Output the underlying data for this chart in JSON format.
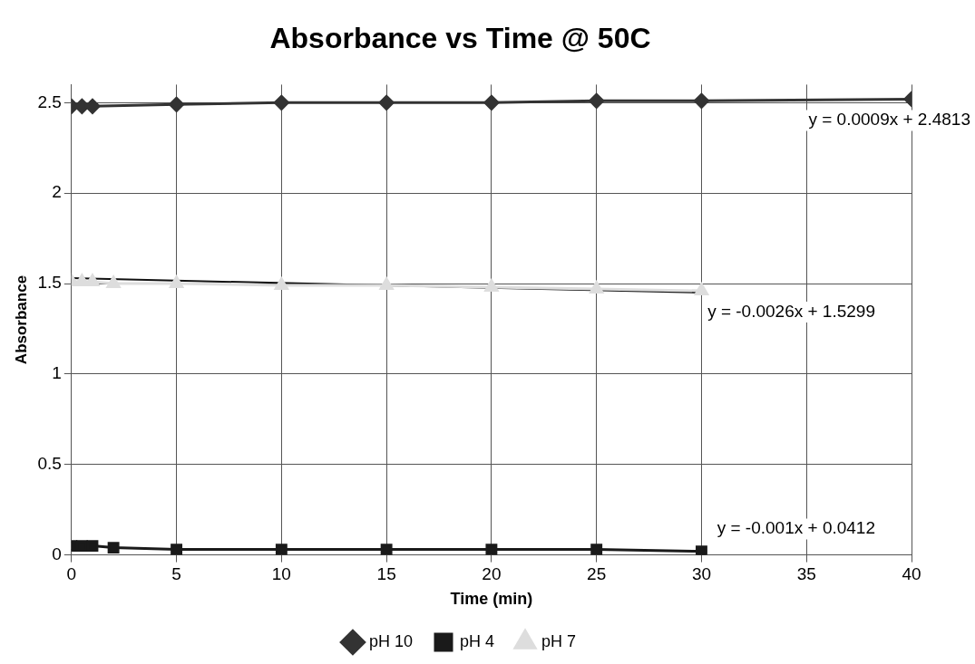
{
  "chart_data": {
    "type": "line",
    "title": "Absorbance vs Time @ 50C",
    "xlabel": "Time (min)",
    "ylabel": "Absorbance",
    "series": [
      {
        "name": "pH 10",
        "color": "#333333",
        "marker": "diamond",
        "x": [
          0,
          0.5,
          1,
          5,
          10,
          15,
          20,
          25,
          30,
          40
        ],
        "values": [
          2.48,
          2.48,
          2.48,
          2.49,
          2.5,
          2.5,
          2.5,
          2.51,
          2.51,
          2.52
        ]
      },
      {
        "name": "pH 4",
        "color": "#1a1a1a",
        "marker": "square",
        "x": [
          0,
          0.5,
          1,
          2,
          5,
          10,
          15,
          20,
          25,
          30
        ],
        "values": [
          0.05,
          0.05,
          0.05,
          0.04,
          0.03,
          0.03,
          0.03,
          0.03,
          0.03,
          0.02
        ]
      },
      {
        "name": "pH 7",
        "color": "#dddddd",
        "marker": "triangle",
        "x": [
          0,
          0.5,
          1,
          2,
          5,
          10,
          15,
          20,
          25,
          30
        ],
        "values": [
          1.51,
          1.51,
          1.51,
          1.5,
          1.5,
          1.49,
          1.49,
          1.48,
          1.47,
          1.46
        ]
      },
      {
        "type": "line",
        "color": "#111111",
        "marker": "none",
        "x": [
          0,
          30
        ],
        "values": [
          1.53,
          1.45
        ]
      }
    ],
    "xlim": [
      0,
      40
    ],
    "xticks": [
      0,
      5,
      10,
      15,
      20,
      25,
      30,
      35,
      40
    ],
    "ylim": [
      0,
      2.6
    ],
    "yticks": [
      0,
      0.5,
      1,
      1.5,
      2,
      2.5
    ],
    "grid": true,
    "legend": "bottom",
    "annotations": [
      "y = 0.0009x + 2.4813",
      "y = -0.0026x + 1.5299",
      "y = -0.001x + 0.0412"
    ]
  }
}
